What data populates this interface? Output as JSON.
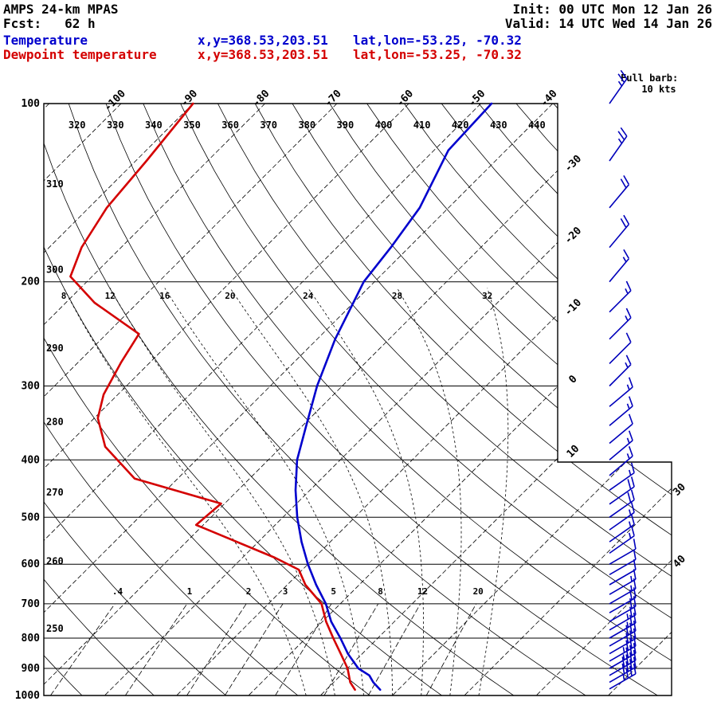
{
  "header": {
    "model": "AMPS 24-km MPAS",
    "forecast": "Fcst:   62 h",
    "init": "Init: 00 UTC Mon 12 Jan 26",
    "valid": "Valid: 14 UTC Wed 14 Jan 26",
    "temperature": {
      "label": "Temperature",
      "xy": "x,y=368.53,203.51",
      "latlon": "lat,lon=-53.25, -70.32"
    },
    "dewpoint": {
      "label": "Dewpoint temperature",
      "xy": "x,y=368.53,203.51",
      "latlon": "lat,lon=-53.25, -70.32"
    }
  },
  "barb_legend": {
    "line1": "Full barb:",
    "line2": "10 kts"
  },
  "colors": {
    "temperature": "#0000cd",
    "dewpoint": "#d40000",
    "wind_barbs": "#0000bb",
    "grid": "#000000",
    "background": "#ffffff"
  },
  "chart_data": {
    "type": "skewt-logp",
    "pressure_axis": {
      "unit": "hPa",
      "scale": "log",
      "ticks": [
        100,
        200,
        300,
        400,
        500,
        600,
        700,
        800,
        900,
        1000
      ]
    },
    "temperature_axis": {
      "unit": "C",
      "isotherm_interval": 10
    },
    "isotherms_c": [
      -110,
      -100,
      -90,
      -80,
      -70,
      -60,
      -50,
      -40,
      -30,
      -20,
      -10,
      0,
      10,
      20,
      30,
      40,
      50
    ],
    "isotherm_labels_top": [
      -100,
      -90,
      -80,
      -70,
      -60,
      -50,
      -40
    ],
    "isotherm_labels_right": [
      -30,
      -20,
      -10,
      0,
      10
    ],
    "isotherm_labels_lower_right": [
      30,
      40
    ],
    "dry_adiabats_k": [
      250,
      260,
      270,
      280,
      290,
      300,
      310,
      320,
      330,
      340,
      350,
      360,
      370,
      380,
      390,
      400,
      410,
      420,
      430,
      440,
      450,
      460
    ],
    "dry_adiabat_labels_top": [
      320,
      330,
      340,
      350,
      360,
      370,
      380,
      390,
      400,
      410,
      420,
      430,
      440
    ],
    "dry_adiabat_labels_left": [
      310,
      300,
      290,
      280,
      270,
      260,
      250
    ],
    "moist_adiabats_c": [
      8,
      12,
      16,
      20,
      24,
      28,
      32
    ],
    "mixing_ratio_lines_gkg": [
      0.4,
      1,
      2,
      3,
      5,
      8,
      12,
      20
    ],
    "full_barb_kt": 10,
    "temperature_profile_p_c": [
      [
        100,
        -48.5
      ],
      [
        120,
        -48
      ],
      [
        150,
        -44
      ],
      [
        175,
        -42.5
      ],
      [
        200,
        -41.5
      ],
      [
        250,
        -37.5
      ],
      [
        300,
        -33.5
      ],
      [
        350,
        -29.5
      ],
      [
        400,
        -26
      ],
      [
        450,
        -22
      ],
      [
        500,
        -18
      ],
      [
        550,
        -14
      ],
      [
        600,
        -10
      ],
      [
        650,
        -6
      ],
      [
        700,
        -2
      ],
      [
        750,
        1.2
      ],
      [
        800,
        4.8
      ],
      [
        850,
        8
      ],
      [
        900,
        11.5
      ],
      [
        925,
        14
      ],
      [
        950,
        15.5
      ],
      [
        978,
        17.5
      ]
    ],
    "dewpoint_profile_p_c": [
      [
        100,
        -90
      ],
      [
        125,
        -88.5
      ],
      [
        150,
        -87.5
      ],
      [
        175,
        -85.5
      ],
      [
        196,
        -83
      ],
      [
        217,
        -76
      ],
      [
        245,
        -65.5
      ],
      [
        274,
        -64
      ],
      [
        310,
        -62
      ],
      [
        340,
        -59.5
      ],
      [
        380,
        -54.5
      ],
      [
        430,
        -46
      ],
      [
        474,
        -30.5
      ],
      [
        515,
        -31
      ],
      [
        585,
        -15.5
      ],
      [
        613,
        -10.5
      ],
      [
        650,
        -7.5
      ],
      [
        700,
        -2.6
      ],
      [
        750,
        0.5
      ],
      [
        800,
        3.8
      ],
      [
        850,
        7
      ],
      [
        900,
        10
      ],
      [
        950,
        12.3
      ],
      [
        978,
        14
      ]
    ],
    "wind_barbs_p_dir_kt": [
      [
        100,
        35,
        25
      ],
      [
        125,
        35,
        25
      ],
      [
        150,
        40,
        20
      ],
      [
        175,
        40,
        20
      ],
      [
        200,
        40,
        15
      ],
      [
        225,
        45,
        15
      ],
      [
        250,
        45,
        15
      ],
      [
        275,
        45,
        10
      ],
      [
        300,
        45,
        15
      ],
      [
        325,
        50,
        15
      ],
      [
        350,
        50,
        15
      ],
      [
        375,
        50,
        10
      ],
      [
        400,
        50,
        15
      ],
      [
        425,
        50,
        15
      ],
      [
        450,
        55,
        15
      ],
      [
        475,
        55,
        20
      ],
      [
        500,
        55,
        20
      ],
      [
        525,
        55,
        15
      ],
      [
        550,
        55,
        15
      ],
      [
        575,
        55,
        15
      ],
      [
        600,
        60,
        10
      ],
      [
        625,
        60,
        10
      ],
      [
        650,
        60,
        10
      ],
      [
        675,
        60,
        15
      ],
      [
        700,
        60,
        15
      ],
      [
        725,
        60,
        20
      ],
      [
        750,
        60,
        20
      ],
      [
        775,
        60,
        25
      ],
      [
        800,
        60,
        25
      ],
      [
        825,
        60,
        30
      ],
      [
        850,
        60,
        30
      ],
      [
        875,
        60,
        35
      ],
      [
        900,
        60,
        35
      ],
      [
        925,
        60,
        40
      ],
      [
        950,
        60,
        40
      ],
      [
        975,
        60,
        35
      ]
    ]
  }
}
